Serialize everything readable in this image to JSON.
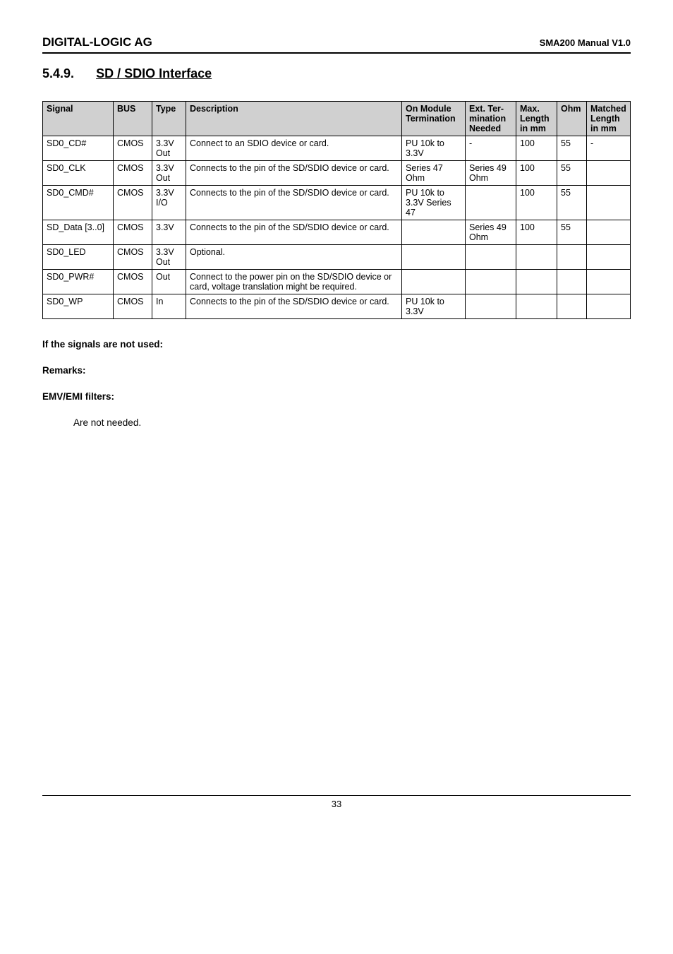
{
  "header": {
    "left": "DIGITAL-LOGIC AG",
    "right": "SMA200 Manual V1.0"
  },
  "section": {
    "num": "5.4.9.",
    "title": "SD / SDIO Interface"
  },
  "table": {
    "type": "table",
    "header_bg": "#d0d0d0",
    "border_color": "#000000",
    "font_size_pt": 9.5,
    "columns": [
      {
        "label": "Signal",
        "align": "left"
      },
      {
        "label": "BUS",
        "align": "left"
      },
      {
        "label": "Type",
        "align": "left"
      },
      {
        "label": "Description",
        "align": "left"
      },
      {
        "label": "On Module Termination",
        "align": "left"
      },
      {
        "label": "Ext. Ter-mination Needed",
        "align": "left"
      },
      {
        "label": "Max. Length in mm",
        "align": "left"
      },
      {
        "label": "Ohm",
        "align": "left"
      },
      {
        "label": "Matched Length in mm",
        "align": "left"
      }
    ],
    "rows": [
      {
        "signal": "SD0_CD#",
        "bus": "CMOS",
        "type": "3.3V Out",
        "desc": "Connect to an SDIO device or card.",
        "term": "PU 10k to 3.3V",
        "ext": "-",
        "max": "100",
        "ohm": "55",
        "match": "-"
      },
      {
        "signal": "SD0_CLK",
        "bus": "CMOS",
        "type": "3.3V Out",
        "desc": "Connects to the pin of the SD/SDIO device or card.",
        "term": "Series 47 Ohm",
        "ext": "Series 49 Ohm",
        "max": "100",
        "ohm": "55",
        "match": ""
      },
      {
        "signal": "SD0_CMD#",
        "bus": "CMOS",
        "type": "3.3V I/O",
        "desc": "Connects to the pin of the SD/SDIO device or card.",
        "term": "PU 10k to 3.3V Series 47",
        "ext": "",
        "max": "100",
        "ohm": "55",
        "match": ""
      },
      {
        "signal": "SD_Data [3..0]",
        "bus": "CMOS",
        "type": "3.3V",
        "desc": "Connects to the pin of the SD/SDIO device or card.",
        "term": "",
        "ext": "Series 49 Ohm",
        "max": "100",
        "ohm": "55",
        "match": ""
      },
      {
        "signal": "SD0_LED",
        "bus": "CMOS",
        "type": "3.3V Out",
        "desc": "Optional.",
        "term": "",
        "ext": "",
        "max": "",
        "ohm": "",
        "match": ""
      },
      {
        "signal": "SD0_PWR#",
        "bus": "CMOS",
        "type": "Out",
        "desc": "Connect to the power pin on the SD/SDIO device or card, voltage translation might be required.",
        "term": "",
        "ext": "",
        "max": "",
        "ohm": "",
        "match": ""
      },
      {
        "signal": "SD0_WP",
        "bus": "CMOS",
        "type": "In",
        "desc": "Connects to the pin of the SD/SDIO device or card.",
        "term": "PU 10k to 3.3V",
        "ext": "",
        "max": "",
        "ohm": "",
        "match": ""
      }
    ]
  },
  "notes": {
    "unused_label": "If the signals are not used:",
    "remarks_label": "Remarks:",
    "emv_label": "EMV/EMI filters:",
    "emv_text": "Are not needed."
  },
  "footer": {
    "page": "33"
  }
}
